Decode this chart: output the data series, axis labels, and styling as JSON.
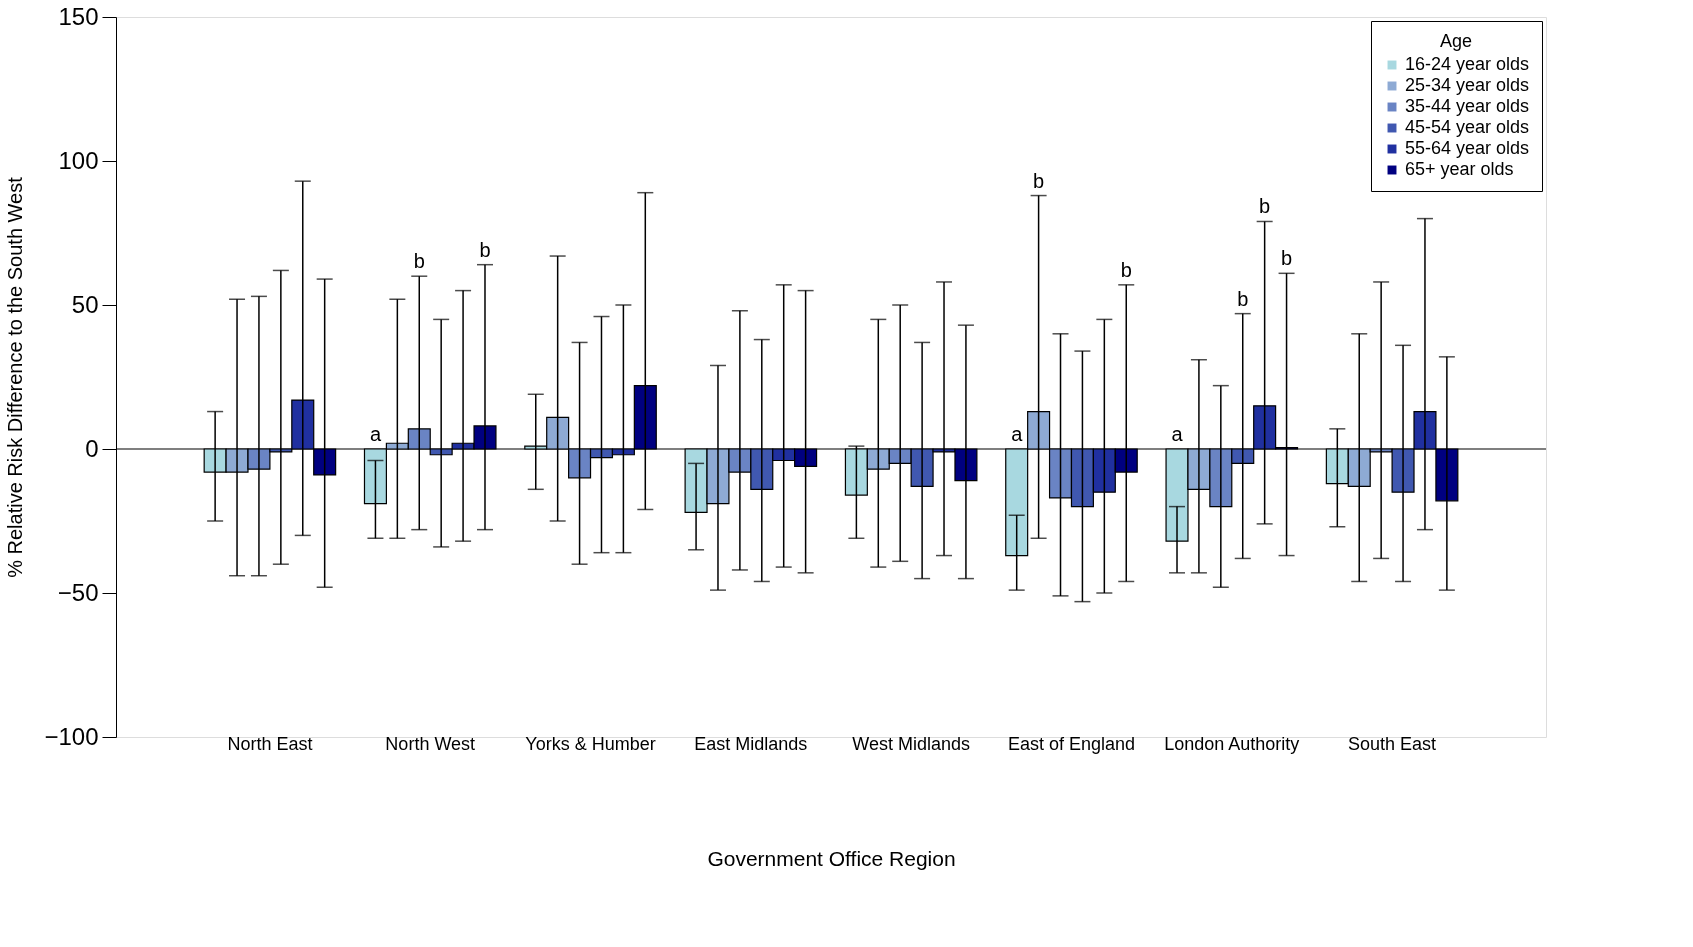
{
  "chart_data": {
    "type": "bar",
    "xlabel": "Government Office Region",
    "ylabel": "% Relative Risk Difference to the South West",
    "legend_title": "Age",
    "legend": "top right",
    "grid": false,
    "categories": [
      "North East",
      "North West",
      "Yorks & Humber",
      "East Midlands",
      "West Midlands",
      "East of England",
      "London Authority",
      "South East"
    ],
    "ylim": [
      -100,
      150
    ],
    "yticks": [
      -100,
      -50,
      0,
      50,
      100,
      150
    ],
    "ref_lines": [
      {
        "axis": "y",
        "value": 0,
        "color": "#000000"
      }
    ],
    "annotations": [
      "a",
      "b",
      "b",
      "a",
      "b",
      "b",
      "a",
      "b",
      "b",
      "b"
    ],
    "series": [
      {
        "name": "16-24 year olds",
        "color": "#a8d8e0",
        "values": [
          -8,
          -19,
          1,
          -22,
          -16,
          -37,
          -32,
          -12
        ],
        "errors": [
          [
            -25,
            13
          ],
          [
            -31,
            -4
          ],
          [
            -14,
            19
          ],
          [
            -35,
            -5
          ],
          [
            -31,
            1
          ],
          [
            -49,
            -23
          ],
          [
            -43,
            -20
          ],
          [
            -27,
            7
          ]
        ]
      },
      {
        "name": "25-34 year olds",
        "color": "#8eaad4",
        "values": [
          -8,
          2,
          11,
          -19,
          -7,
          13,
          -14,
          -13
        ],
        "errors": [
          [
            -44,
            52
          ],
          [
            -31,
            52
          ],
          [
            -25,
            67
          ],
          [
            -49,
            29
          ],
          [
            -41,
            45
          ],
          [
            -31,
            88
          ],
          [
            -43,
            31
          ],
          [
            -46,
            40
          ]
        ]
      },
      {
        "name": "35-44 year olds",
        "color": "#6a84c4",
        "values": [
          -7,
          7,
          -10,
          -8,
          -5,
          -17,
          -20,
          -1
        ],
        "errors": [
          [
            -44,
            53
          ],
          [
            -28,
            60
          ],
          [
            -40,
            37
          ],
          [
            -42,
            48
          ],
          [
            -39,
            50
          ],
          [
            -51,
            40
          ],
          [
            -48,
            22
          ],
          [
            -38,
            58
          ]
        ]
      },
      {
        "name": "45-54 year olds",
        "color": "#4058b0",
        "values": [
          -1,
          -2,
          -3,
          -14,
          -13,
          -20,
          -5,
          -15
        ],
        "errors": [
          [
            -40,
            62
          ],
          [
            -34,
            45
          ],
          [
            -36,
            46
          ],
          [
            -46,
            38
          ],
          [
            -45,
            37
          ],
          [
            -53,
            34
          ],
          [
            -38,
            47
          ],
          [
            -46,
            36
          ]
        ]
      },
      {
        "name": "55-64 year olds",
        "color": "#2030a0",
        "values": [
          17,
          2,
          -2,
          -4,
          -1,
          -15,
          15,
          13
        ],
        "errors": [
          [
            -30,
            93
          ],
          [
            -32,
            55
          ],
          [
            -36,
            50
          ],
          [
            -41,
            57
          ],
          [
            -37,
            58
          ],
          [
            -50,
            45
          ],
          [
            -26,
            79
          ],
          [
            -28,
            80
          ]
        ]
      },
      {
        "name": "65+ year olds",
        "color": "#000080",
        "values": [
          -9,
          8,
          22,
          -6,
          -11,
          -8,
          0.5,
          -18
        ],
        "errors": [
          [
            -48,
            59
          ],
          [
            -28,
            64
          ],
          [
            -21,
            89
          ],
          [
            -43,
            55
          ],
          [
            -45,
            43
          ],
          [
            -46,
            57
          ],
          [
            -37,
            61
          ],
          [
            -49,
            32
          ]
        ]
      }
    ]
  }
}
